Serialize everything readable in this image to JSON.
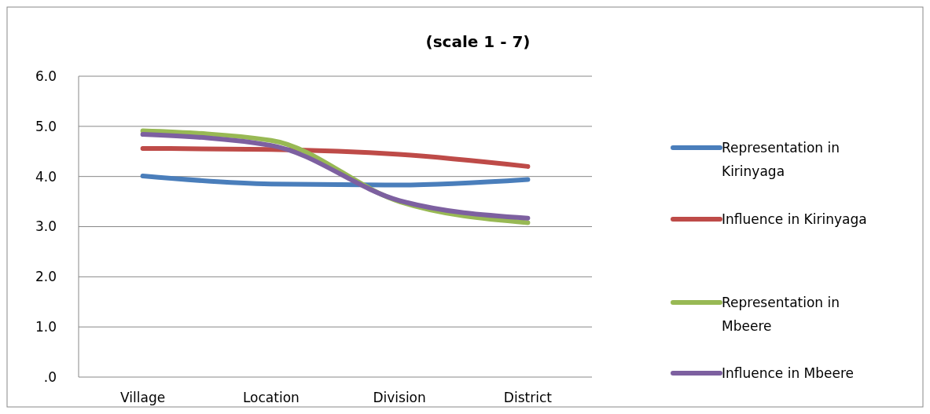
{
  "chart_data": {
    "type": "line",
    "title": "(scale 1 - 7)",
    "categories": [
      "Village",
      "Location",
      "Division",
      "District"
    ],
    "series": [
      {
        "name": "Representation in Kirinyaga",
        "color": "#4a7ebb",
        "values": [
          4.01,
          3.85,
          3.83,
          3.94
        ]
      },
      {
        "name": "Influence in Kirinyaga",
        "color": "#be4b48",
        "values": [
          4.56,
          4.54,
          4.44,
          4.2
        ]
      },
      {
        "name": "Representation in Mbeere",
        "color": "#98b954",
        "values": [
          4.91,
          4.72,
          3.5,
          3.08
        ]
      },
      {
        "name": "Influence in Mbeere",
        "color": "#7d60a0",
        "values": [
          4.84,
          4.62,
          3.52,
          3.17
        ]
      }
    ],
    "ylim": [
      0,
      6
    ],
    "yticks": [
      {
        "value": 0,
        "label": ".0"
      },
      {
        "value": 1,
        "label": "1.0"
      },
      {
        "value": 2,
        "label": "2.0"
      },
      {
        "value": 3,
        "label": "3.0"
      },
      {
        "value": 4,
        "label": "4.0"
      },
      {
        "value": 5,
        "label": "5.0"
      },
      {
        "value": 6,
        "label": "6.0"
      }
    ],
    "grid": "y",
    "legend": "right",
    "marker": "none",
    "line_style": "solid"
  }
}
